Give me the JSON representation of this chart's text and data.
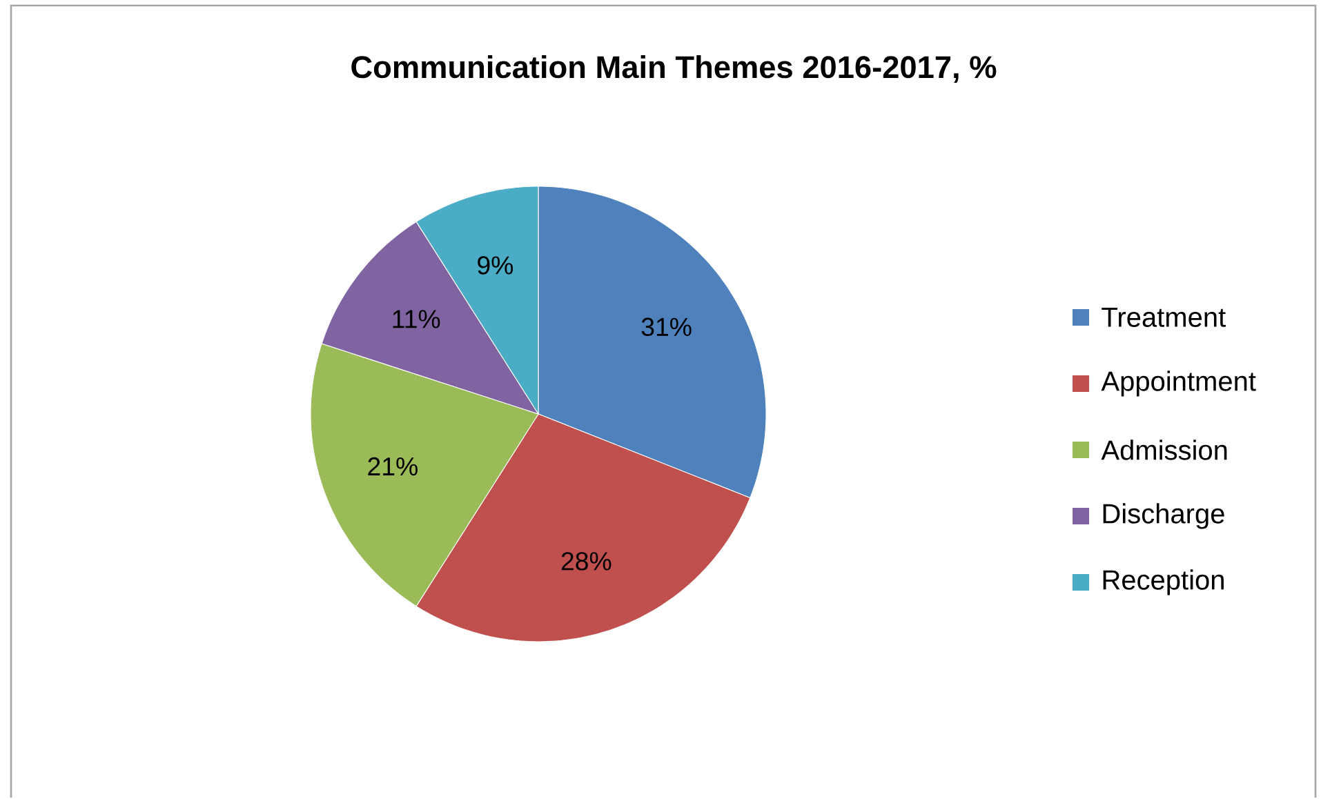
{
  "chart_data": {
    "type": "pie",
    "title": "Communication Main Themes 2016-2017, %",
    "categories": [
      "Treatment",
      "Appointment",
      "Admission",
      "Discharge",
      "Reception"
    ],
    "values": [
      31,
      28,
      21,
      11,
      9
    ],
    "value_labels": [
      "31%",
      "28%",
      "21%",
      "11%",
      "9%"
    ],
    "colors": [
      "#4f81bd",
      "#c0504d",
      "#9bbb59",
      "#8064a2",
      "#4bacc6"
    ],
    "legend": "right"
  }
}
